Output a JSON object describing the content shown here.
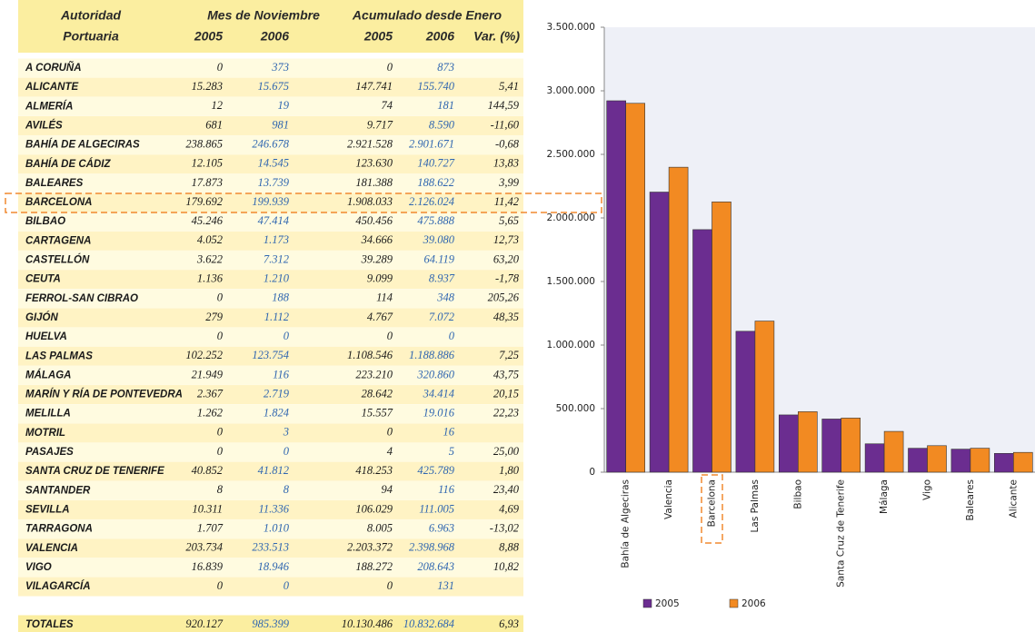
{
  "table": {
    "header": {
      "authority": [
        "Autoridad",
        "Portuaria"
      ],
      "month": "Mes de Noviembre",
      "month_years": [
        "2005",
        "2006"
      ],
      "cumulative": "Acumulado desde Enero",
      "cumulative_years": [
        "2005",
        "2006"
      ],
      "var": "Var. (%)"
    },
    "rows": [
      [
        "A CORUÑA",
        "0",
        "373",
        "0",
        "873"
      ],
      [
        "ALICANTE",
        "15.283",
        "15.675",
        "147.741",
        "155.740",
        "5,41"
      ],
      [
        "ALMERÍA",
        "12",
        "19",
        "74",
        "181",
        "144,59"
      ],
      [
        "AVILÉS",
        "681",
        "981",
        "9.717",
        "8.590",
        "-11,60"
      ],
      [
        "BAHÍA DE ALGECIRAS",
        "238.865",
        "246.678",
        "2.921.528",
        "2.901.671",
        "-0,68"
      ],
      [
        "BAHÍA DE CÁDIZ",
        "12.105",
        "14.545",
        "123.630",
        "140.727",
        "13,83"
      ],
      [
        "BALEARES",
        "17.873",
        "13.739",
        "181.388",
        "188.622",
        "3,99"
      ],
      [
        "BARCELONA",
        "179.692",
        "199.939",
        "1.908.033",
        "2.126.024",
        "11,42"
      ],
      [
        "BILBAO",
        "45.246",
        "47.414",
        "450.456",
        "475.888",
        "5,65"
      ],
      [
        "CARTAGENA",
        "4.052",
        "1.173",
        "34.666",
        "39.080",
        "12,73"
      ],
      [
        "CASTELLÓN",
        "3.622",
        "7.312",
        "39.289",
        "64.119",
        "63,20"
      ],
      [
        "CEUTA",
        "1.136",
        "1.210",
        "9.099",
        "8.937",
        "-1,78"
      ],
      [
        "FERROL-SAN CIBRAO",
        "0",
        "188",
        "114",
        "348",
        "205,26"
      ],
      [
        "GIJÓN",
        "279",
        "1.112",
        "4.767",
        "7.072",
        "48,35"
      ],
      [
        "HUELVA",
        "0",
        "0",
        "0",
        "0"
      ],
      [
        "LAS PALMAS",
        "102.252",
        "123.754",
        "1.108.546",
        "1.188.886",
        "7,25"
      ],
      [
        "MÁLAGA",
        "21.949",
        "116",
        "223.210",
        "320.860",
        "43,75"
      ],
      [
        "MARÍN Y RÍA DE PONTEVEDRA",
        "2.367",
        "2.719",
        "28.642",
        "34.414",
        "20,15"
      ],
      [
        "MELILLA",
        "1.262",
        "1.824",
        "15.557",
        "19.016",
        "22,23"
      ],
      [
        "MOTRIL",
        "0",
        "3",
        "0",
        "16"
      ],
      [
        "PASAJES",
        "0",
        "0",
        "4",
        "5",
        "25,00"
      ],
      [
        "SANTA CRUZ DE TENERIFE",
        "40.852",
        "41.812",
        "418.253",
        "425.789",
        "1,80"
      ],
      [
        "SANTANDER",
        "8",
        "8",
        "94",
        "116",
        "23,40"
      ],
      [
        "SEVILLA",
        "10.311",
        "11.336",
        "106.029",
        "111.005",
        "4,69"
      ],
      [
        "TARRAGONA",
        "1.707",
        "1.010",
        "8.005",
        "6.963",
        "-13,02"
      ],
      [
        "VALENCIA",
        "203.734",
        "233.513",
        "2.203.372",
        "2.398.968",
        "8,88"
      ],
      [
        "VIGO",
        "16.839",
        "18.946",
        "188.272",
        "208.643",
        "10,82"
      ],
      [
        "VILAGARCÍA",
        "0",
        "0",
        "0",
        "131"
      ]
    ],
    "totals": [
      "TOTALES",
      "920.127",
      "985.399",
      "10.130.486",
      "10.832.684",
      "6,93"
    ]
  },
  "chart_data": {
    "type": "bar",
    "categories": [
      "Bahía de Algeciras",
      "Valencia",
      "Barcelona",
      "Las Palmas",
      "Bilbao",
      "Santa Cruz de Tenerife",
      "Málaga",
      "Vigo",
      "Baleares",
      "Alicante"
    ],
    "series": [
      {
        "name": "2005",
        "color": "#6b2d90",
        "values": [
          2921528,
          2203372,
          1908033,
          1108546,
          450456,
          418253,
          223210,
          188272,
          181388,
          147741
        ]
      },
      {
        "name": "2006",
        "color": "#f28a22",
        "values": [
          2901671,
          2398968,
          2126024,
          1188886,
          475888,
          425789,
          320860,
          208643,
          188622,
          155740
        ]
      }
    ],
    "ylim": [
      0,
      3500000
    ],
    "yticks": [
      0,
      {
        "value": 500000,
        "label": "500.000"
      },
      {
        "value": 1000000,
        "label": "1.000.000"
      },
      {
        "value": 1500000,
        "label": "1.500.000"
      },
      {
        "value": 2000000,
        "label": "2.000.000"
      },
      {
        "value": 2500000,
        "label": "2.500.000"
      },
      {
        "value": 3000000,
        "label": "3.000.000"
      },
      {
        "value": 3500000,
        "label": "3.500.000"
      }
    ],
    "legend": "bottom"
  }
}
